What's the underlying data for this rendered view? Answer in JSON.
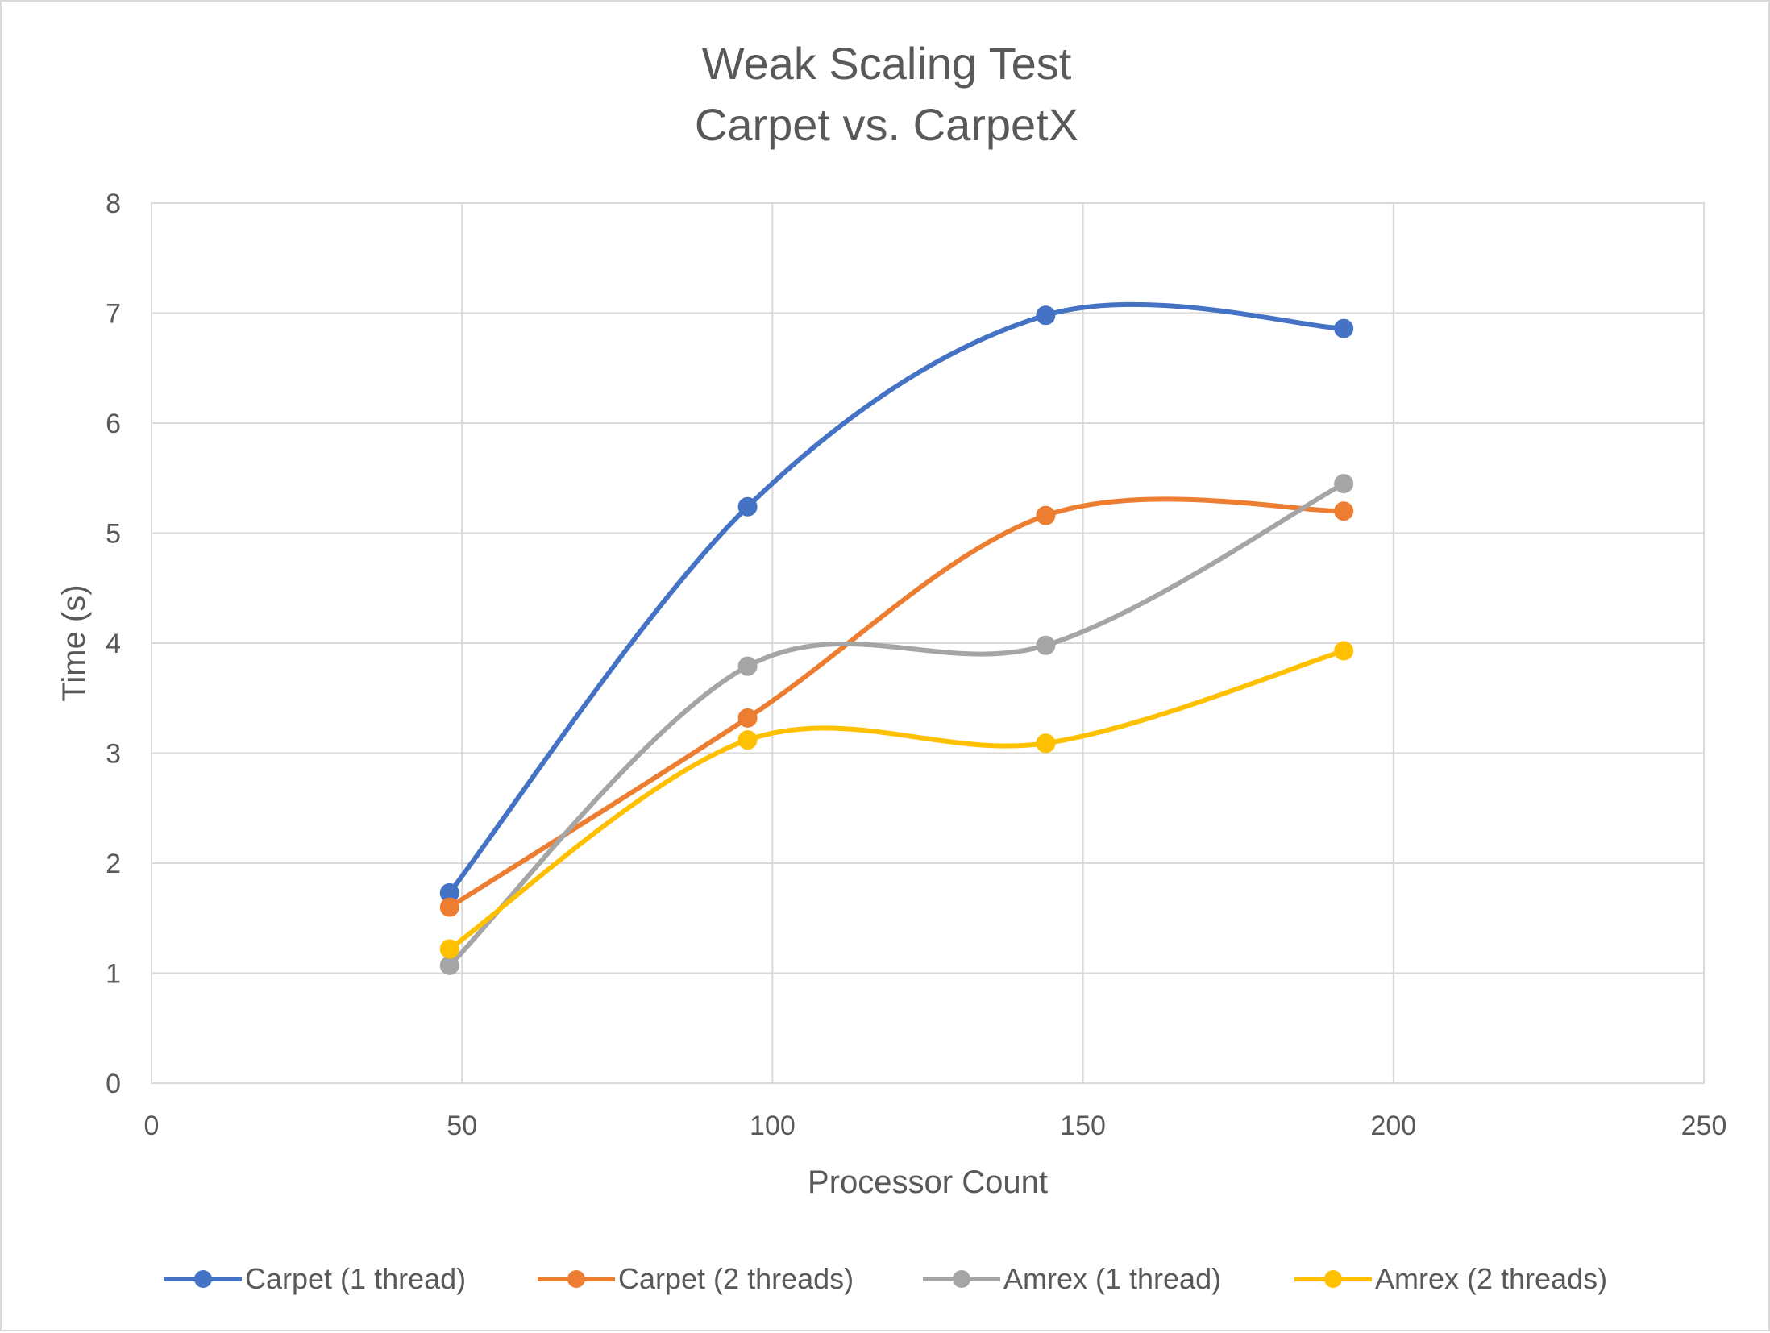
{
  "chart_data": {
    "type": "line",
    "title": "Weak Scaling Test",
    "subtitle": "Carpet vs. CarpetX",
    "xlabel": "Processor Count",
    "ylabel": "Time (s)",
    "xlim": [
      0,
      250
    ],
    "ylim": [
      0,
      8
    ],
    "xticks": [
      "0",
      "50",
      "100",
      "150",
      "200",
      "250"
    ],
    "yticks": [
      "0",
      "1",
      "2",
      "3",
      "4",
      "5",
      "6",
      "7",
      "8"
    ],
    "grid": true,
    "smoothed": true,
    "legend_position": "bottom",
    "x": [
      48,
      96,
      144,
      192
    ],
    "series": [
      {
        "name": "Carpet (1 thread)",
        "color": "#4472c4",
        "values": [
          1.73,
          5.24,
          6.98,
          6.86
        ]
      },
      {
        "name": "Carpet (2 threads)",
        "color": "#ed7d31",
        "values": [
          1.6,
          3.32,
          5.16,
          5.2
        ]
      },
      {
        "name": "Amrex (1 thread)",
        "color": "#a5a5a5",
        "values": [
          1.07,
          3.79,
          3.98,
          5.45
        ]
      },
      {
        "name": "Amrex (2 threads)",
        "color": "#ffc000",
        "values": [
          1.22,
          3.12,
          3.09,
          3.93
        ]
      }
    ]
  }
}
